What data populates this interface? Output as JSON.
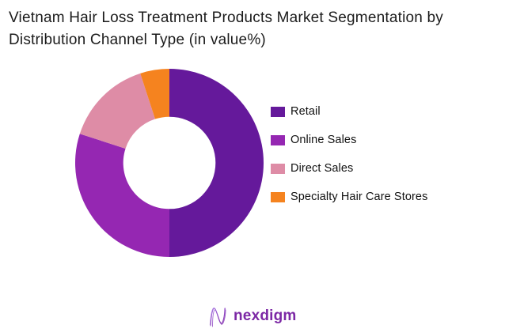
{
  "chart_data": {
    "type": "pie",
    "variant": "donut",
    "title": "Vietnam Hair Loss Treatment Products Market Segmentation by Distribution Channel Type (in value%)",
    "unit": "value%",
    "categories": [
      "Retail",
      "Online Sales",
      "Direct Sales",
      "Specialty Hair Care Stores"
    ],
    "values": [
      50,
      30,
      15,
      5
    ],
    "colors": [
      "#65199B",
      "#9527B2",
      "#DE8CA6",
      "#F5831F"
    ],
    "start_angle": "top",
    "direction": "clockwise",
    "inner_radius_ratio": 0.49,
    "legend_position": "right",
    "grid": false
  },
  "footer": {
    "logo_text": "nexdigm"
  },
  "theme": {
    "background": "#ffffff",
    "title_color": "#1b1b1b",
    "legend_text_color": "#111111",
    "logo_text_color": "#7c28a5",
    "logo_gradient_start": "#a678e8",
    "logo_gradient_end": "#7c1fa2"
  }
}
